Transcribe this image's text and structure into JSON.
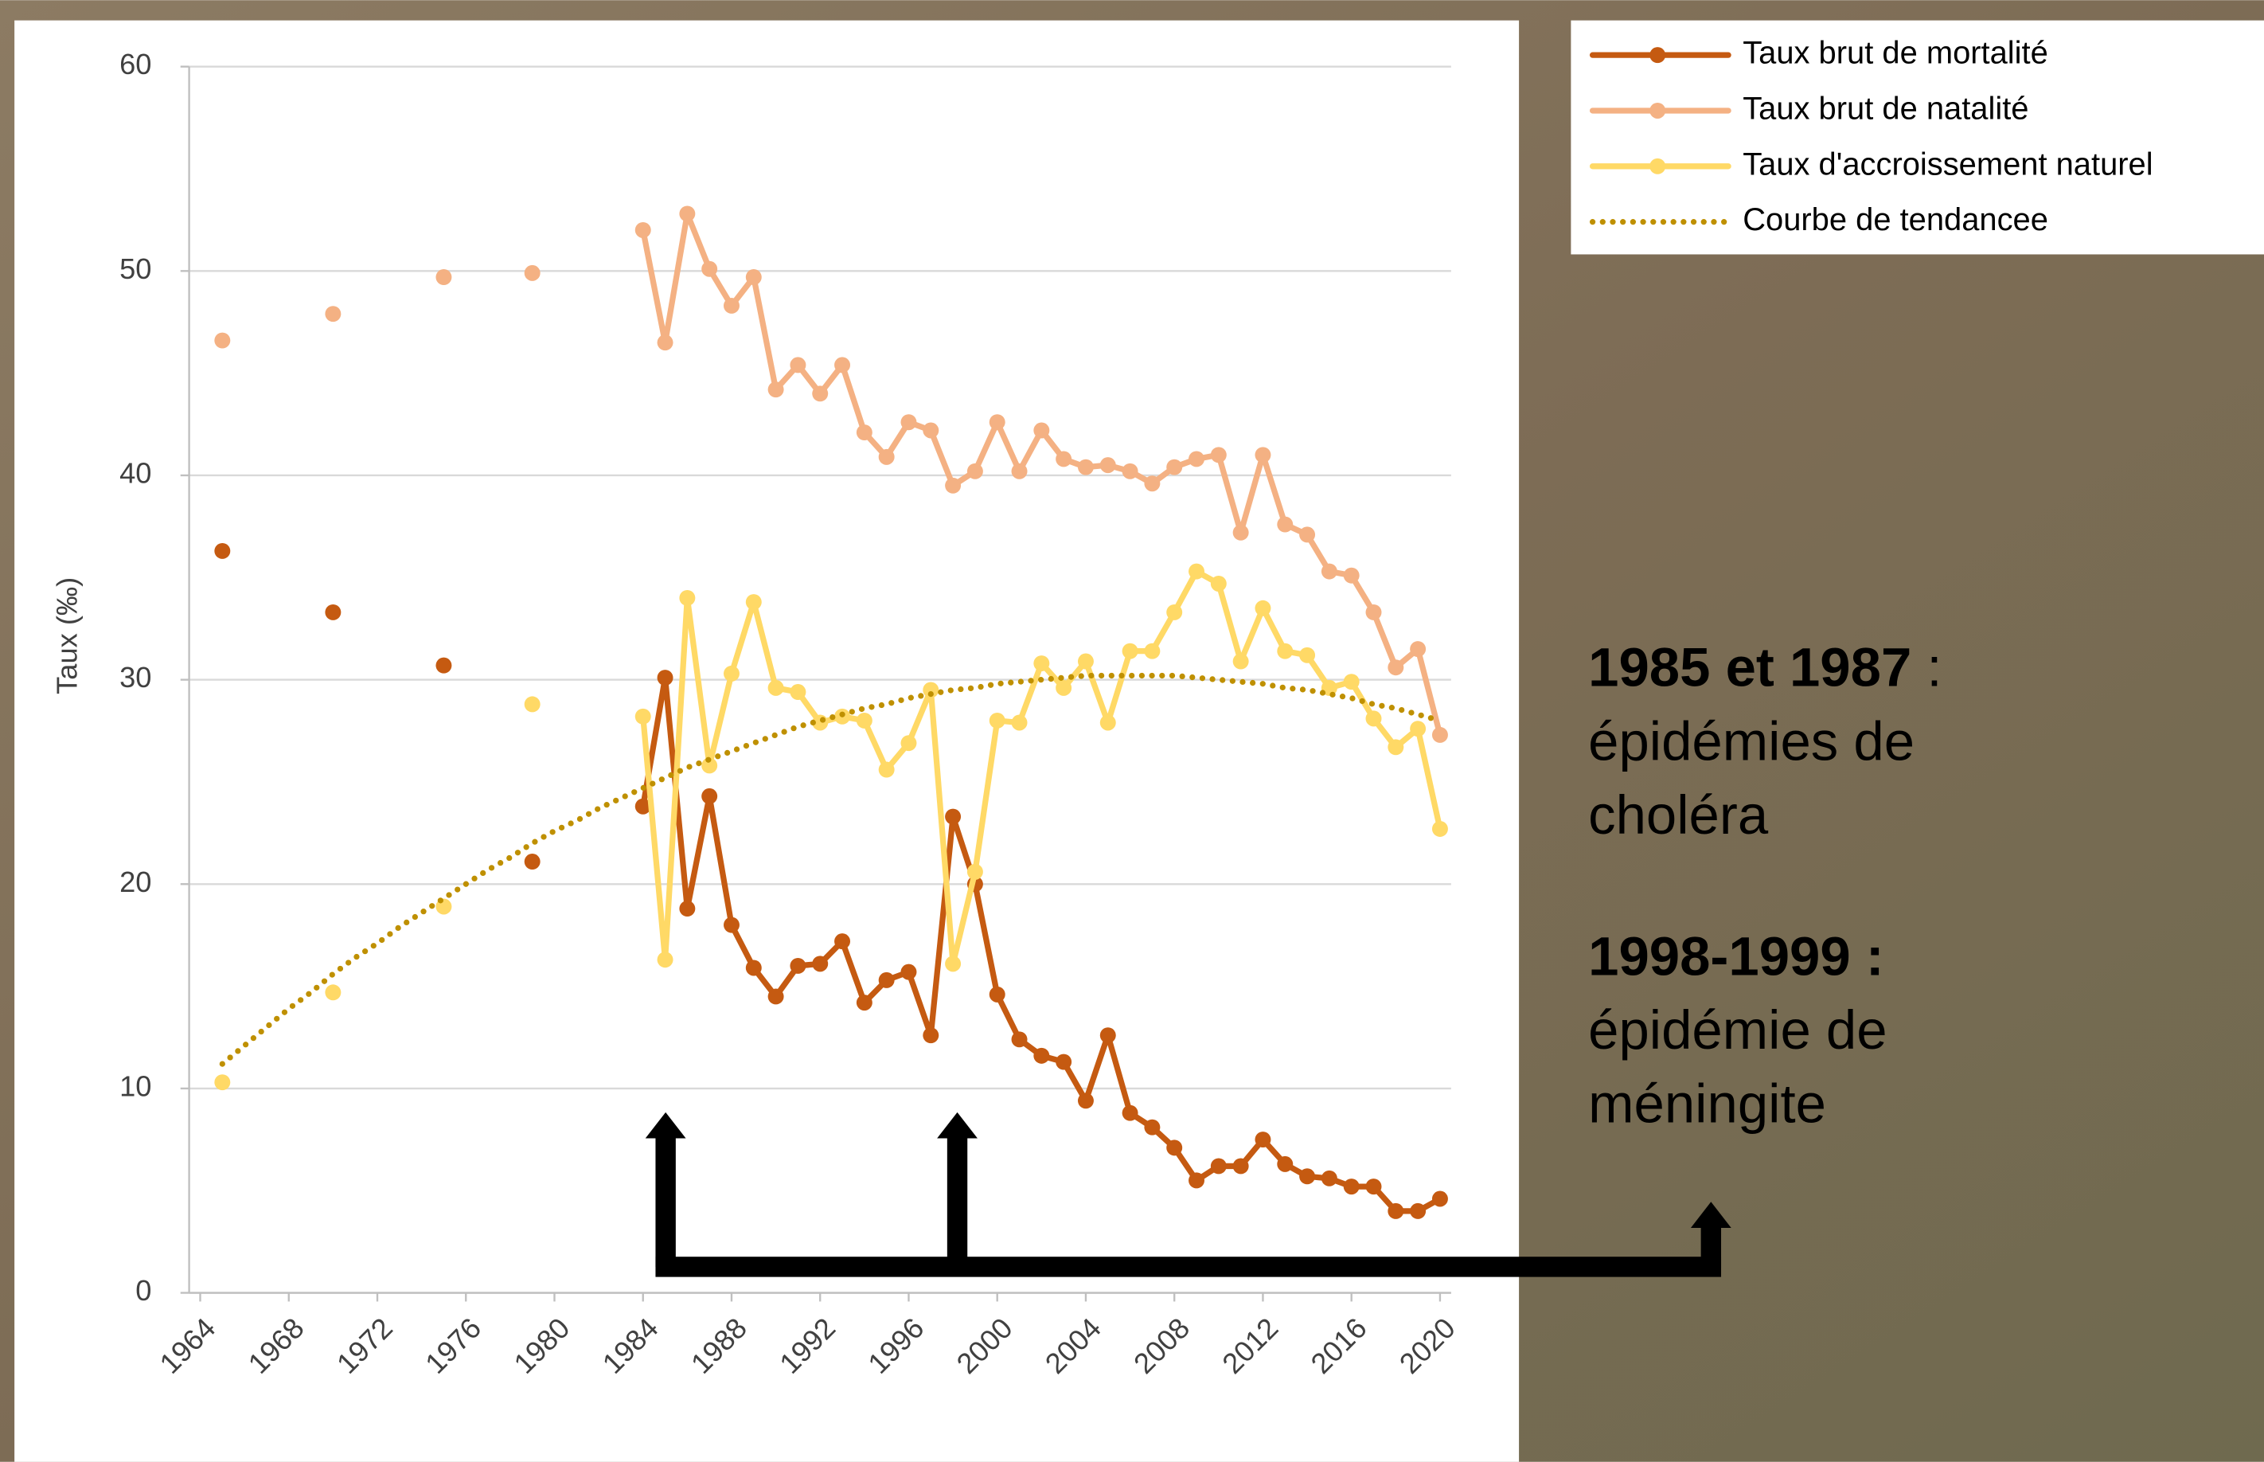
{
  "chart_data": {
    "type": "line",
    "y_label": "Taux (‰)",
    "x": [
      1965,
      1966,
      1967,
      1968,
      1969,
      1970,
      1971,
      1972,
      1973,
      1974,
      1975,
      1976,
      1977,
      1978,
      1979,
      1980,
      1981,
      1982,
      1983,
      1984,
      1985,
      1986,
      1987,
      1988,
      1989,
      1990,
      1991,
      1992,
      1993,
      1994,
      1995,
      1996,
      1997,
      1998,
      1999,
      2000,
      2001,
      2002,
      2003,
      2004,
      2005,
      2006,
      2007,
      2008,
      2009,
      2010,
      2011,
      2012,
      2013,
      2014,
      2015,
      2016,
      2017,
      2018,
      2019,
      2020
    ],
    "xlim": [
      1963.5,
      2020.5
    ],
    "xticks": [
      1964,
      1968,
      1972,
      1976,
      1980,
      1984,
      1988,
      1992,
      1996,
      2000,
      2004,
      2008,
      2012,
      2016,
      2020
    ],
    "ylim": [
      0,
      60
    ],
    "yticks": [
      0,
      10,
      20,
      30,
      40,
      50,
      60
    ],
    "grid": true,
    "legend": "top-right",
    "series": [
      {
        "name": "Taux brut de mortalité",
        "color": "#c55a11",
        "style": "solid",
        "values": [
          36.3,
          null,
          null,
          null,
          null,
          33.3,
          null,
          null,
          null,
          null,
          30.7,
          null,
          null,
          null,
          21.1,
          null,
          null,
          null,
          null,
          23.8,
          30.1,
          18.8,
          24.3,
          18.0,
          15.9,
          14.5,
          16.0,
          16.1,
          17.2,
          14.2,
          15.3,
          15.7,
          12.6,
          23.3,
          20.0,
          14.6,
          12.4,
          11.6,
          11.3,
          9.4,
          12.6,
          8.8,
          8.1,
          7.1,
          5.5,
          6.2,
          6.2,
          7.5,
          6.3,
          5.7,
          5.6,
          5.2,
          5.2,
          4.0,
          4.0,
          4.6
        ]
      },
      {
        "name": "Taux brut de natalité",
        "color": "#f4b183",
        "style": "solid",
        "values": [
          46.6,
          null,
          null,
          null,
          null,
          47.9,
          null,
          null,
          null,
          null,
          49.7,
          null,
          null,
          null,
          49.9,
          null,
          null,
          null,
          null,
          52.0,
          46.5,
          52.8,
          50.1,
          48.3,
          49.7,
          44.2,
          45.4,
          44.0,
          45.4,
          42.1,
          40.9,
          42.6,
          42.2,
          39.5,
          40.2,
          42.6,
          40.2,
          42.2,
          40.8,
          40.4,
          40.5,
          40.2,
          39.6,
          40.4,
          40.8,
          41.0,
          37.2,
          41.0,
          37.6,
          37.1,
          35.3,
          35.1,
          33.3,
          30.6,
          31.5,
          27.3
        ]
      },
      {
        "name": "Taux d'accroissement naturel",
        "color": "#ffd966",
        "style": "solid",
        "values": [
          10.3,
          null,
          null,
          null,
          null,
          14.7,
          null,
          null,
          null,
          null,
          18.9,
          null,
          null,
          null,
          28.8,
          null,
          null,
          null,
          null,
          28.2,
          16.3,
          34.0,
          25.8,
          30.3,
          33.8,
          29.6,
          29.4,
          27.9,
          28.2,
          28.0,
          25.6,
          26.9,
          29.5,
          16.1,
          20.6,
          28.0,
          27.9,
          30.8,
          29.6,
          30.9,
          27.9,
          31.4,
          31.4,
          33.3,
          35.3,
          34.7,
          30.9,
          33.5,
          31.4,
          31.2,
          29.6,
          29.9,
          28.1,
          26.7,
          27.6,
          22.7
        ]
      },
      {
        "name": "Courbe de tendancee",
        "color": "#bf9000",
        "style": "dotted",
        "values": [
          11.2,
          12.1,
          13.0,
          13.9,
          14.7,
          15.6,
          16.4,
          17.1,
          17.9,
          18.6,
          19.3,
          20.0,
          20.7,
          21.3,
          22.0,
          22.6,
          23.1,
          23.7,
          24.2,
          24.7,
          25.2,
          25.7,
          26.1,
          26.5,
          26.9,
          27.3,
          27.7,
          28.0,
          28.3,
          28.6,
          28.8,
          29.1,
          29.3,
          29.5,
          29.6,
          29.8,
          29.9,
          30.0,
          30.1,
          30.2,
          30.2,
          30.2,
          30.2,
          30.2,
          30.1,
          30.0,
          29.9,
          29.8,
          29.6,
          29.5,
          29.3,
          29.1,
          28.8,
          28.6,
          28.3,
          28.0
        ]
      }
    ],
    "annotations": [
      {
        "title": "1985 et 1987",
        "title_suffix": " :",
        "lines": [
          "épidémies de",
          "choléra"
        ]
      },
      {
        "title": "1998-1999 :",
        "lines": [
          "épidémie de",
          "méningite"
        ]
      }
    ]
  }
}
